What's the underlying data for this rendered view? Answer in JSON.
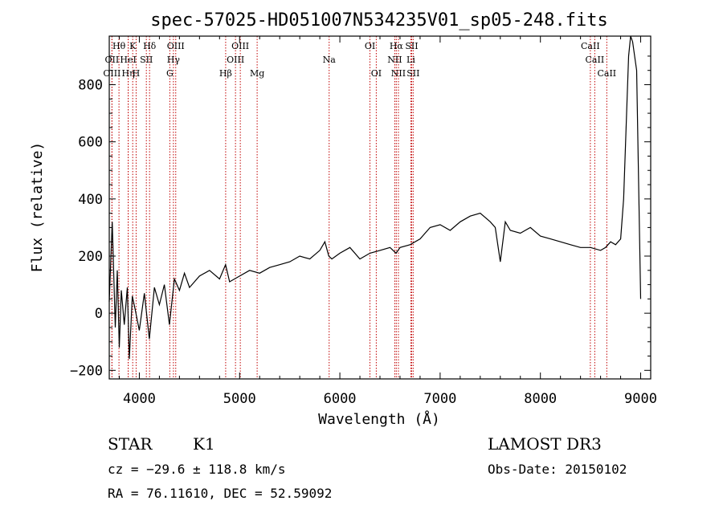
{
  "chart_data": {
    "type": "line",
    "title": "spec-57025-HD051007N534235V01_sp05-248.fits",
    "xlabel": "Wavelength (Å)",
    "ylabel": "Flux (relative)",
    "xlim": [
      3700,
      9100
    ],
    "ylim": [
      -230,
      970
    ],
    "x_ticks": [
      4000,
      5000,
      6000,
      7000,
      8000,
      9000
    ],
    "y_ticks": [
      -200,
      0,
      200,
      400,
      600,
      800
    ],
    "grid": false,
    "series": [
      {
        "name": "flux",
        "x": [
          3700,
          3730,
          3760,
          3780,
          3800,
          3820,
          3850,
          3880,
          3900,
          3930,
          3960,
          4000,
          4050,
          4100,
          4150,
          4200,
          4250,
          4300,
          4350,
          4400,
          4450,
          4500,
          4600,
          4700,
          4800,
          4860,
          4900,
          5000,
          5100,
          5200,
          5300,
          5400,
          5500,
          5600,
          5700,
          5800,
          5850,
          5890,
          5920,
          6000,
          6100,
          6200,
          6300,
          6400,
          6500,
          6560,
          6600,
          6700,
          6800,
          6900,
          7000,
          7100,
          7200,
          7300,
          7400,
          7500,
          7550,
          7600,
          7650,
          7700,
          7800,
          7900,
          8000,
          8100,
          8200,
          8300,
          8400,
          8500,
          8600,
          8650,
          8700,
          8750,
          8800,
          8830,
          8860,
          8880,
          8900,
          8920,
          8940,
          8960,
          9000
        ],
        "y": [
          40,
          320,
          -50,
          150,
          -120,
          80,
          -40,
          90,
          -160,
          60,
          10,
          -60,
          70,
          -90,
          90,
          30,
          100,
          -40,
          120,
          80,
          140,
          90,
          130,
          150,
          120,
          170,
          110,
          130,
          150,
          140,
          160,
          170,
          180,
          200,
          190,
          220,
          250,
          200,
          190,
          210,
          230,
          190,
          210,
          220,
          230,
          210,
          230,
          240,
          260,
          300,
          310,
          290,
          320,
          340,
          350,
          320,
          300,
          180,
          320,
          290,
          280,
          300,
          270,
          260,
          250,
          240,
          230,
          230,
          220,
          230,
          250,
          240,
          260,
          400,
          700,
          900,
          980,
          950,
          900,
          850,
          50
        ]
      }
    ],
    "line_markers": [
      {
        "label": "OII",
        "x": 3727,
        "row": 2
      },
      {
        "label": "Hθ",
        "x": 3797,
        "row": 1
      },
      {
        "label": "OIII",
        "x": 3727,
        "row": 3
      },
      {
        "label": "HeI",
        "x": 3889,
        "row": 2
      },
      {
        "label": "Hη",
        "x": 3889,
        "row": 3
      },
      {
        "label": "K",
        "x": 3934,
        "row": 1
      },
      {
        "label": "SII",
        "x": 4070,
        "row": 2
      },
      {
        "label": "H",
        "x": 3968,
        "row": 3
      },
      {
        "label": "Hδ",
        "x": 4102,
        "row": 1
      },
      {
        "label": "OIII",
        "x": 4363,
        "row": 1
      },
      {
        "label": "Hγ",
        "x": 4340,
        "row": 2
      },
      {
        "label": "G",
        "x": 4304,
        "row": 3
      },
      {
        "label": "Hβ",
        "x": 4861,
        "row": 3
      },
      {
        "label": "OIII",
        "x": 5007,
        "row": 1
      },
      {
        "label": "OIII",
        "x": 4959,
        "row": 2
      },
      {
        "label": "Mg",
        "x": 5175,
        "row": 3
      },
      {
        "label": "Na",
        "x": 5893,
        "row": 2
      },
      {
        "label": "OI",
        "x": 6300,
        "row": 1
      },
      {
        "label": "OI",
        "x": 6363,
        "row": 3
      },
      {
        "label": "Hα",
        "x": 6563,
        "row": 1
      },
      {
        "label": "SII",
        "x": 6716,
        "row": 1
      },
      {
        "label": "NII",
        "x": 6548,
        "row": 2
      },
      {
        "label": "Li",
        "x": 6708,
        "row": 2
      },
      {
        "label": "NII",
        "x": 6584,
        "row": 3
      },
      {
        "label": "SII",
        "x": 6731,
        "row": 3
      },
      {
        "label": "CaII",
        "x": 8498,
        "row": 1
      },
      {
        "label": "CaII",
        "x": 8542,
        "row": 2
      },
      {
        "label": "CaII",
        "x": 8662,
        "row": 3
      }
    ]
  },
  "info": {
    "object_class": "STAR",
    "subclass": "K1",
    "survey": "LAMOST DR3",
    "cz": "cz = −29.6 ± 118.8 km/s",
    "obs_date": "Obs-Date: 20150102",
    "coords": "RA =  76.11610, DEC =  52.59092"
  },
  "colors": {
    "line": "#000000",
    "marker": "#c00000",
    "axis": "#000000"
  }
}
